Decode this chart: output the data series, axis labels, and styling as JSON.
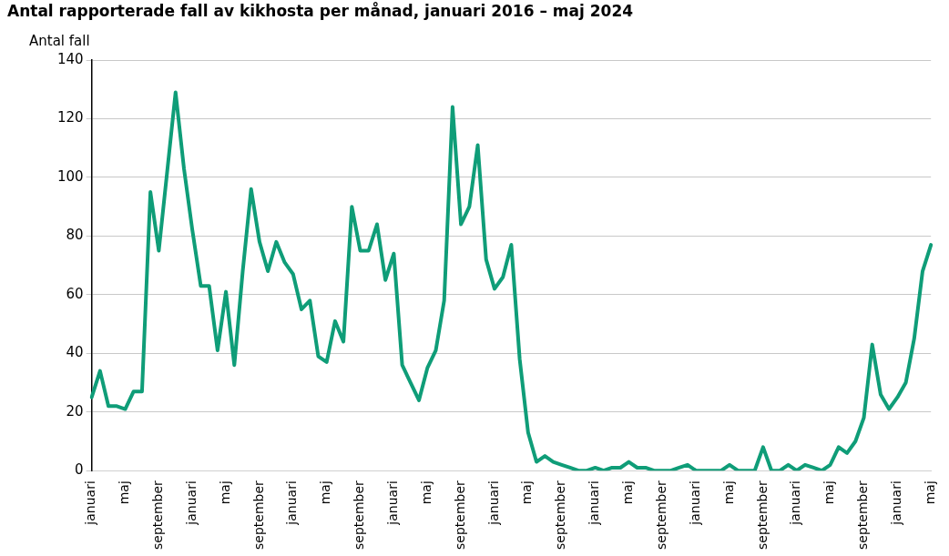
{
  "chart_data": {
    "type": "line",
    "title": "Antal rapporterade fall av kikhosta per månad, januari 2016 – maj 2024",
    "ylabel": "Antal fall",
    "categories": [
      "januari",
      null,
      null,
      null,
      "maj",
      null,
      null,
      null,
      "september",
      null,
      null,
      null,
      "januari",
      null,
      null,
      null,
      "maj",
      null,
      null,
      null,
      "september",
      null,
      null,
      null,
      "januari",
      null,
      null,
      null,
      "maj",
      null,
      null,
      null,
      "september",
      null,
      null,
      null,
      "januari",
      null,
      null,
      null,
      "maj",
      null,
      null,
      null,
      "september",
      null,
      null,
      null,
      "januari",
      null,
      null,
      null,
      "maj",
      null,
      null,
      null,
      "september",
      null,
      null,
      null,
      "januari",
      null,
      null,
      null,
      "maj",
      null,
      null,
      null,
      "september",
      null,
      null,
      null,
      "januari",
      null,
      null,
      null,
      "maj",
      null,
      null,
      null,
      "september",
      null,
      null,
      null,
      "januari",
      null,
      null,
      null,
      "maj",
      null,
      null,
      null,
      "september",
      null,
      null,
      null,
      "januari",
      null,
      null,
      null,
      "maj"
    ],
    "series": [
      {
        "color": "#0f9d78",
        "values": [
          25,
          34,
          22,
          22,
          21,
          27,
          27,
          95,
          75,
          102,
          129,
          103,
          82,
          63,
          63,
          41,
          61,
          36,
          68,
          96,
          78,
          68,
          78,
          71,
          67,
          55,
          58,
          39,
          37,
          51,
          44,
          90,
          75,
          75,
          84,
          65,
          74,
          36,
          30,
          24,
          35,
          41,
          58,
          124,
          84,
          90,
          111,
          72,
          62,
          66,
          77,
          38,
          13,
          3,
          5,
          3,
          2,
          1,
          0,
          0,
          1,
          0,
          1,
          1,
          3,
          1,
          1,
          0,
          0,
          0,
          1,
          2,
          0,
          0,
          0,
          0,
          2,
          0,
          0,
          0,
          8,
          0,
          0,
          2,
          0,
          2,
          1,
          0,
          2,
          8,
          6,
          10,
          18,
          43,
          26,
          21,
          25,
          30,
          45,
          68,
          77
        ]
      }
    ],
    "ylim": [
      0,
      140
    ],
    "yticks": [
      0,
      20,
      40,
      60,
      80,
      100,
      120,
      140
    ],
    "grid": "y",
    "legend": false,
    "line_style": "solid",
    "marker": "none"
  }
}
